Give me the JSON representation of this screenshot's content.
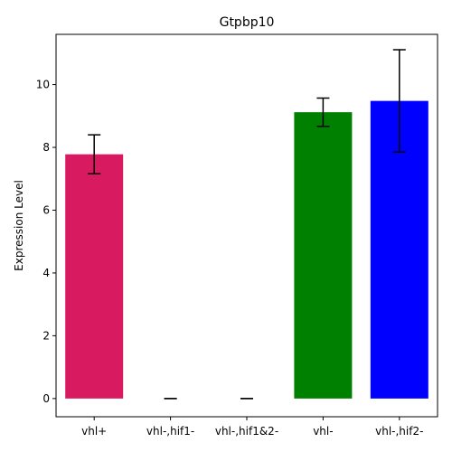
{
  "chart_data": {
    "type": "bar",
    "title": "Gtpbp10",
    "xlabel": "",
    "ylabel": "Expression Level",
    "categories": [
      "vhl+",
      "vhl-,hif1-",
      "vhl-,hif1&2-",
      "vhl-",
      "vhl-,hif2-"
    ],
    "values": [
      7.78,
      0.0,
      0.0,
      9.12,
      9.48
    ],
    "errors": [
      0.62,
      0.0,
      0.0,
      0.45,
      1.63
    ],
    "colors": [
      "#d81b60",
      "#d81b60",
      "#d81b60",
      "#008000",
      "#0000ff"
    ],
    "yticks": [
      0,
      2,
      4,
      6,
      8,
      10
    ],
    "ylim": [
      -0.58,
      11.6
    ],
    "grid": false
  }
}
